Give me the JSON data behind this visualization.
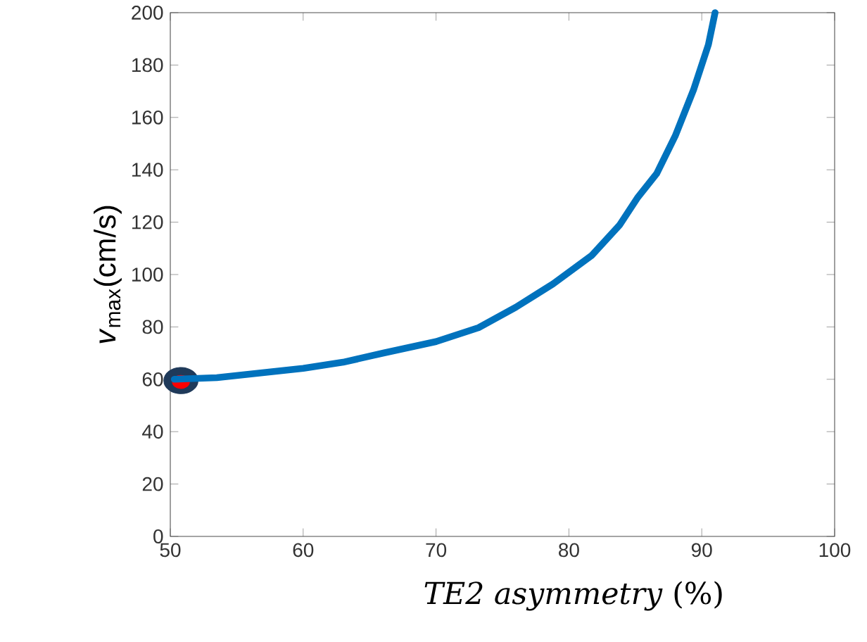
{
  "chart_data": {
    "type": "line",
    "xlabel": "*TE2 asymmetry* (%)",
    "ylabel": "*v*$_{max}$(cm/s)",
    "xlim": [
      50,
      100
    ],
    "ylim": [
      0,
      200
    ],
    "xticks": [
      50,
      60,
      70,
      80,
      90,
      100
    ],
    "yticks": [
      0,
      20,
      40,
      60,
      80,
      100,
      120,
      140,
      160,
      180,
      200
    ],
    "grid": false,
    "series": [
      {
        "color": "#0072bd",
        "line_style": "solid",
        "marker": "none",
        "x": [
          50.3,
          53.5,
          60.0,
          63.0,
          66.1,
          70.0,
          73.2,
          76.0,
          78.8,
          81.7,
          83.8,
          85.2,
          86.6,
          88.0,
          89.4,
          90.5,
          91.0
        ],
        "values": [
          60.0,
          60.6,
          64.2,
          66.5,
          70.1,
          74.4,
          79.7,
          87.5,
          96.4,
          107.2,
          118.8,
          129.6,
          138.5,
          152.9,
          170.8,
          187.8,
          200
        ]
      },
      {
        "type": "scatter",
        "color": "#1f3a5a",
        "marker": "circle",
        "x": [
          50.8
        ],
        "values": [
          59.5
        ]
      },
      {
        "type": "scatter",
        "color": "#ff0000",
        "marker": "circle",
        "x": [
          50.8
        ],
        "values": [
          59.0
        ]
      }
    ]
  }
}
